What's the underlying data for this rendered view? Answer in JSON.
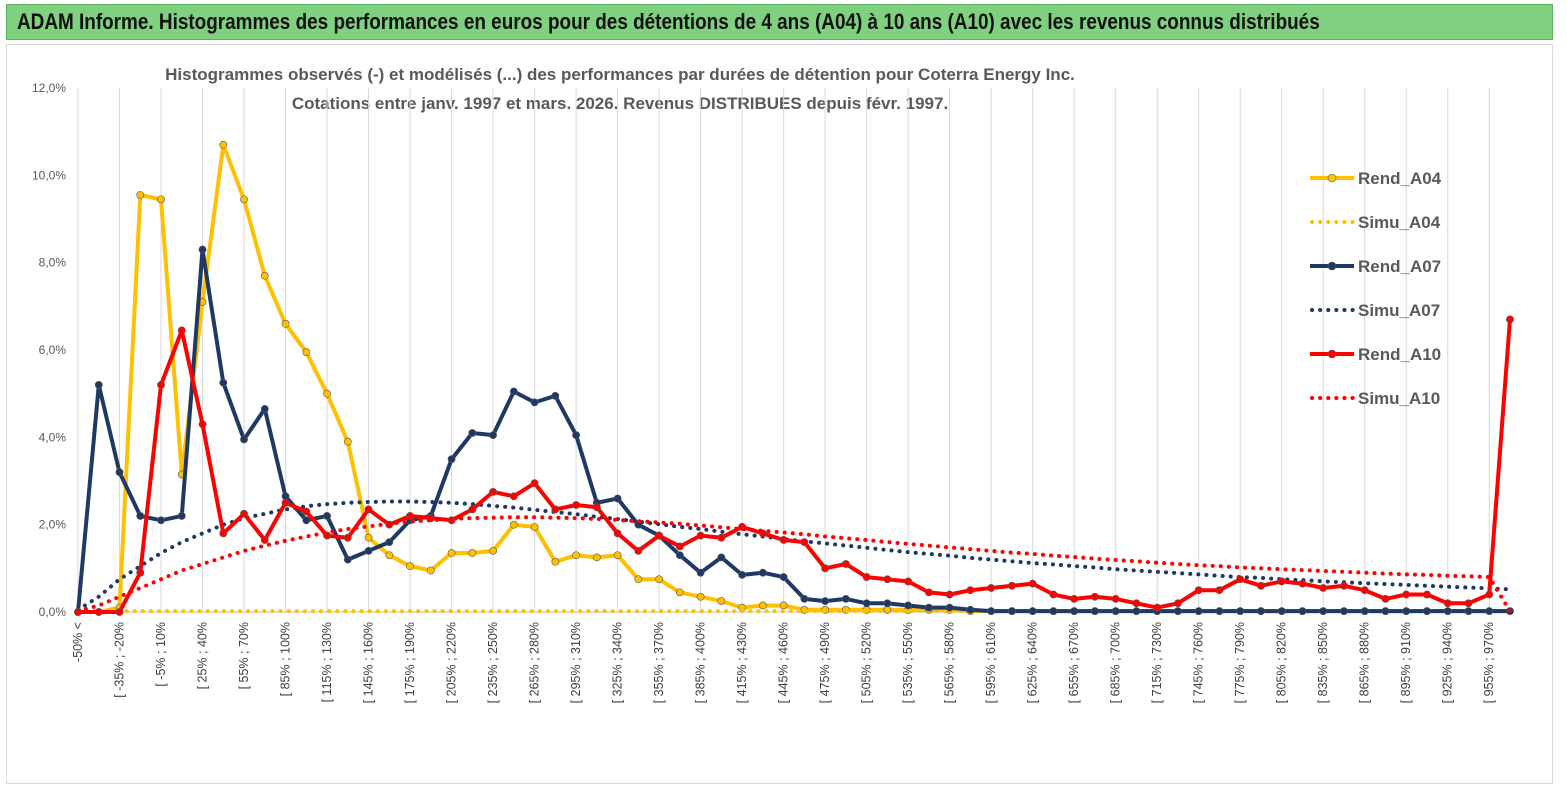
{
  "banner": {
    "title": "ADAM Informe. Histogrammes des performances en euros pour des détentions de 4 ans (A04) à 10 ans (A10) avec les revenus connus distribués"
  },
  "chart_data": {
    "type": "line",
    "title": "Histogrammes observés (-) et modélisés (...) des performances par durées de détention pour Coterra Energy Inc.",
    "subtitle": "Cotations entre janv. 1997 et mars. 2026.  Revenus DISTRIBUES depuis févr. 1997.",
    "xlabel": "",
    "ylabel": "",
    "ylim": [
      0,
      12
    ],
    "y_ticks": [
      "0,0%",
      "2,0%",
      "4,0%",
      "6,0%",
      "8,0%",
      "10,0%",
      "12,0%"
    ],
    "x_tick_labels": [
      "-50% <",
      "[ -35% ; -20%",
      "[ -5% ; 10%",
      "[ 25% ; 40%",
      "[ 55% ; 70%",
      "[ 85% ; 100%",
      "[ 115% ; 130%",
      "[ 145% ; 160%",
      "[ 175% ; 190%",
      "[ 205% ; 220%",
      "[ 235% ; 250%",
      "[ 265% ; 280%",
      "[ 295% ; 310%",
      "[ 325% ; 340%",
      "[ 355% ; 370%",
      "[ 385% ; 400%",
      "[ 415% ; 430%",
      "[ 445% ; 460%",
      "[ 475% ; 490%",
      "[ 505% ; 520%",
      "[ 535% ; 550%",
      "[ 565% ; 580%",
      "[ 595% ; 610%",
      "[ 625% ; 640%",
      "[ 655% ; 670%",
      "[ 685% ; 700%",
      "[ 715% ; 730%",
      "[ 745% ; 760%",
      "[ 775% ; 790%",
      "[ 805% ; 820%",
      "[ 835% ; 850%",
      "[ 865% ; 880%",
      "[ 895% ; 910%",
      "[ 925% ; 940%",
      "[ 955% ; 970%"
    ],
    "legend_position": "right",
    "series": [
      {
        "name": "Rend_A04",
        "style": "solid-markers",
        "color": "#ffc000",
        "values": [
          0,
          0,
          0.1,
          9.55,
          9.45,
          3.15,
          7.1,
          10.7,
          9.45,
          7.7,
          6.6,
          5.95,
          5,
          3.9,
          1.7,
          1.3,
          1.05,
          0.95,
          1.35,
          1.35,
          1.4,
          2,
          1.95,
          1.15,
          1.3,
          1.25,
          1.3,
          0.75,
          0.75,
          0.45,
          0.35,
          0.25,
          0.1,
          0.15,
          0.15,
          0.05,
          0.05,
          0.05,
          0.05,
          0.05,
          0.05,
          0.05,
          0.05,
          0.02,
          0.02,
          0.02,
          0.02,
          0.02,
          0.02,
          0.02,
          0.02,
          0.02,
          0.02,
          0.02,
          0.02,
          0.02,
          0.02,
          0.02,
          0.02,
          0.02,
          0.02,
          0.02,
          0.02,
          0.02,
          0.02,
          0.02,
          0.02,
          0.02,
          0.02,
          0.02
        ]
      },
      {
        "name": "Simu_A04",
        "style": "dotted",
        "color": "#ffc000",
        "values": [
          0.02,
          0.02,
          0.02,
          0.02,
          0.02,
          0.02,
          0.02,
          0.02,
          0.02,
          0.02,
          0.02,
          0.02,
          0.02,
          0.02,
          0.02,
          0.02,
          0.02,
          0.02,
          0.02,
          0.02,
          0.02,
          0.02,
          0.02,
          0.02,
          0.02,
          0.02,
          0.02,
          0.02,
          0.02,
          0.02,
          0.02,
          0.02,
          0.02,
          0.02,
          0.02,
          0.02,
          0.02,
          0.02,
          0.02,
          0.02,
          0.02,
          0.02,
          0.02,
          0.02,
          0.02,
          0.02,
          0.02,
          0.02,
          0.02,
          0.02,
          0.02,
          0.02,
          0.02,
          0.02,
          0.02,
          0.02,
          0.02,
          0.02,
          0.02,
          0.02,
          0.02,
          0.02,
          0.02,
          0.02,
          0.02,
          0.02,
          0.02,
          0.02,
          0.02,
          0.02
        ]
      },
      {
        "name": "Rend_A07",
        "style": "solid-markers",
        "color": "#1f3864",
        "values": [
          0,
          5.2,
          3.2,
          2.2,
          2.1,
          2.2,
          8.3,
          5.25,
          3.95,
          4.65,
          2.65,
          2.1,
          2.2,
          1.2,
          1.4,
          1.6,
          2.1,
          2.2,
          3.5,
          4.1,
          4.05,
          5.05,
          4.8,
          4.95,
          4.05,
          2.5,
          2.6,
          2.0,
          1.75,
          1.3,
          0.9,
          1.25,
          0.85,
          0.9,
          0.8,
          0.3,
          0.25,
          0.3,
          0.2,
          0.2,
          0.15,
          0.1,
          0.1,
          0.05,
          0.02,
          0.02,
          0.02,
          0.02,
          0.02,
          0.02,
          0.02,
          0.02,
          0.02,
          0.02,
          0.02,
          0.02,
          0.02,
          0.02,
          0.02,
          0.02,
          0.02,
          0.02,
          0.02,
          0.02,
          0.02,
          0.02,
          0.02,
          0.02,
          0.02,
          0.02
        ]
      },
      {
        "name": "Simu_A07",
        "style": "dotted",
        "color": "#1f3864",
        "values": [
          0.05,
          0.35,
          0.75,
          1.05,
          1.35,
          1.6,
          1.8,
          2.0,
          2.15,
          2.25,
          2.35,
          2.42,
          2.47,
          2.5,
          2.52,
          2.53,
          2.53,
          2.52,
          2.5,
          2.47,
          2.43,
          2.39,
          2.34,
          2.29,
          2.24,
          2.18,
          2.13,
          2.07,
          2.01,
          1.95,
          1.9,
          1.84,
          1.78,
          1.73,
          1.67,
          1.62,
          1.57,
          1.52,
          1.47,
          1.42,
          1.37,
          1.33,
          1.29,
          1.24,
          1.2,
          1.16,
          1.12,
          1.09,
          1.05,
          1.02,
          0.98,
          0.95,
          0.92,
          0.89,
          0.86,
          0.83,
          0.8,
          0.78,
          0.75,
          0.73,
          0.7,
          0.68,
          0.66,
          0.64,
          0.62,
          0.6,
          0.58,
          0.56,
          0.54,
          0.52
        ]
      },
      {
        "name": "Rend_A10",
        "style": "solid-markers",
        "color": "#ff0000",
        "values": [
          0,
          0,
          0,
          0.9,
          5.2,
          6.45,
          4.3,
          1.8,
          2.25,
          1.65,
          2.5,
          2.3,
          1.75,
          1.7,
          2.35,
          2.0,
          2.2,
          2.15,
          2.1,
          2.35,
          2.75,
          2.65,
          2.95,
          2.35,
          2.45,
          2.4,
          1.8,
          1.4,
          1.75,
          1.5,
          1.75,
          1.7,
          1.95,
          1.8,
          1.65,
          1.6,
          1.0,
          1.1,
          0.8,
          0.75,
          0.7,
          0.45,
          0.4,
          0.5,
          0.55,
          0.6,
          0.65,
          0.4,
          0.3,
          0.35,
          0.3,
          0.2,
          0.1,
          0.2,
          0.5,
          0.5,
          0.75,
          0.6,
          0.7,
          0.65,
          0.55,
          0.6,
          0.5,
          0.3,
          0.4,
          0.4,
          0.2,
          0.2,
          0.4,
          6.7
        ]
      },
      {
        "name": "Simu_A10",
        "style": "dotted",
        "color": "#ff0000",
        "values": [
          0.02,
          0.15,
          0.35,
          0.55,
          0.75,
          0.95,
          1.1,
          1.25,
          1.4,
          1.52,
          1.63,
          1.73,
          1.82,
          1.9,
          1.96,
          2.02,
          2.07,
          2.1,
          2.13,
          2.15,
          2.16,
          2.17,
          2.17,
          2.16,
          2.15,
          2.13,
          2.11,
          2.08,
          2.05,
          2.02,
          1.98,
          1.94,
          1.9,
          1.86,
          1.82,
          1.78,
          1.73,
          1.69,
          1.65,
          1.6,
          1.56,
          1.52,
          1.48,
          1.44,
          1.4,
          1.36,
          1.33,
          1.29,
          1.26,
          1.22,
          1.19,
          1.16,
          1.13,
          1.1,
          1.07,
          1.05,
          1.02,
          1.0,
          0.98,
          0.96,
          0.94,
          0.92,
          0.9,
          0.88,
          0.86,
          0.85,
          0.83,
          0.82,
          0.8,
          0.02
        ]
      }
    ]
  }
}
